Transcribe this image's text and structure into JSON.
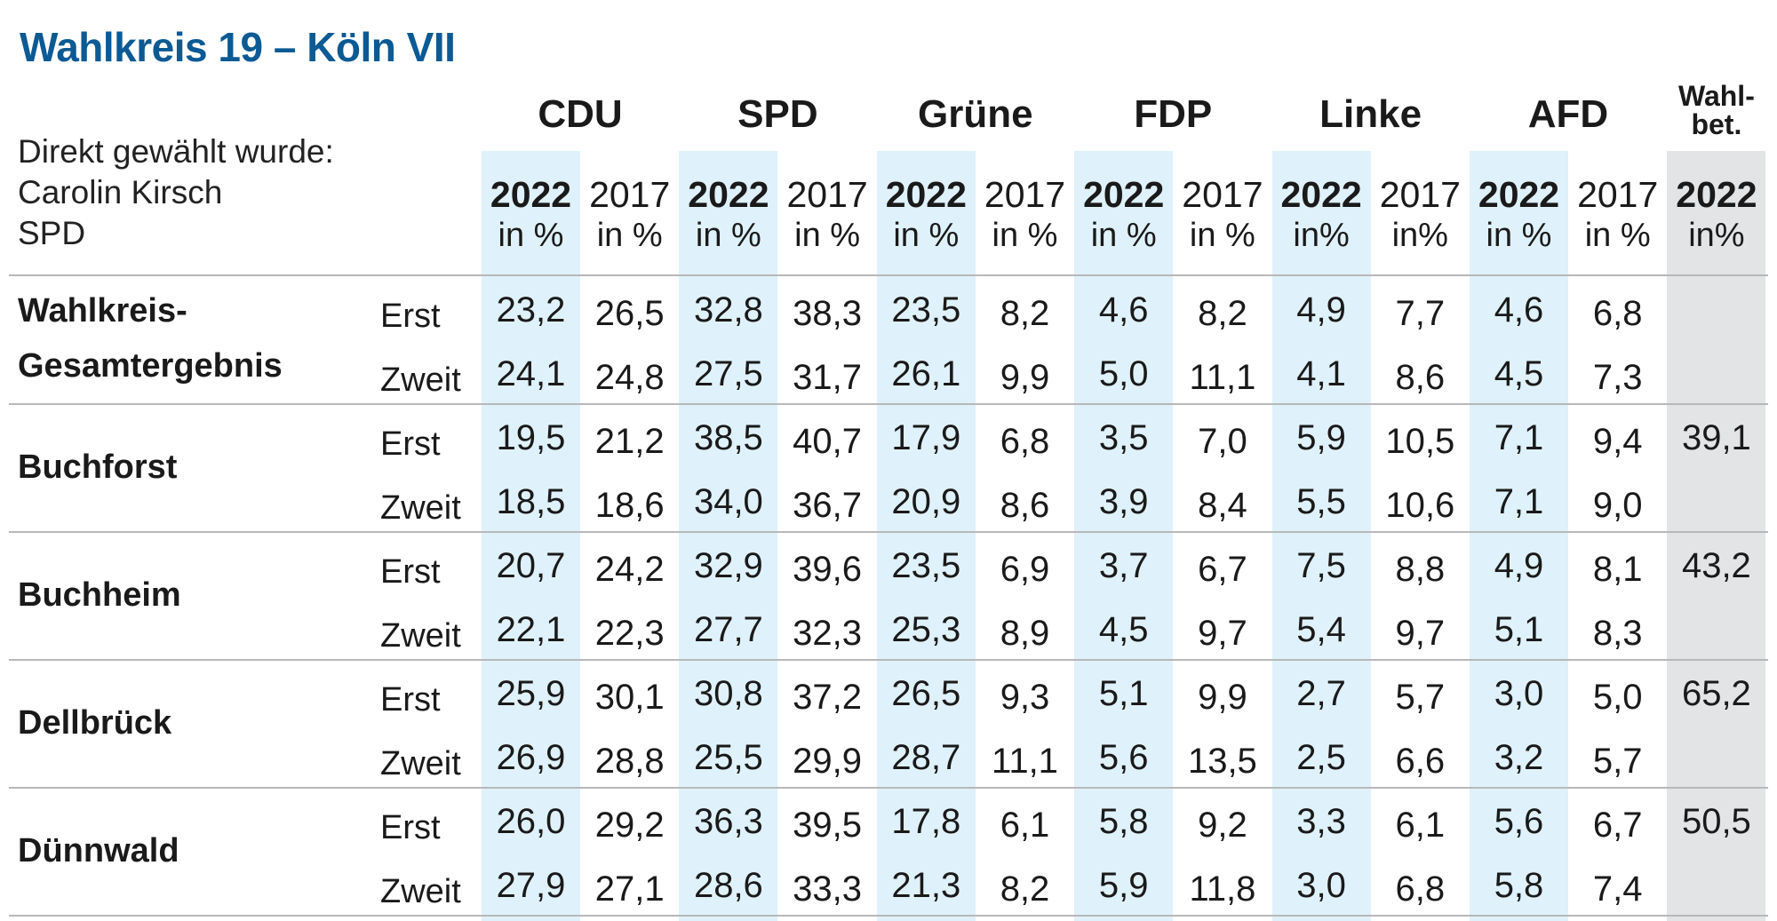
{
  "title": "Wahlkreis 19 – Köln VII",
  "elected": {
    "label": "Direkt gewählt wurde:",
    "name": "Carolin Kirsch",
    "party": "SPD"
  },
  "colors": {
    "title": "#0b5a94",
    "highlight_2022": "#dff1fa",
    "turnout_column": "#e3e4e6"
  },
  "parties": [
    "CDU",
    "SPD",
    "Grüne",
    "FDP",
    "Linke",
    "AFD"
  ],
  "turnout_header": "Wahl-\nbet.",
  "year_headers": [
    {
      "year": "2022",
      "unit": "in %"
    },
    {
      "year": "2017",
      "unit": "in %"
    },
    {
      "year": "2022",
      "unit": "in %"
    },
    {
      "year": "2017",
      "unit": "in %"
    },
    {
      "year": "2022",
      "unit": "in %"
    },
    {
      "year": "2017",
      "unit": "in %"
    },
    {
      "year": "2022",
      "unit": "in %"
    },
    {
      "year": "2017",
      "unit": "in %"
    },
    {
      "year": "2022",
      "unit": "in%"
    },
    {
      "year": "2017",
      "unit": "in%"
    },
    {
      "year": "2022",
      "unit": "in %"
    },
    {
      "year": "2017",
      "unit": "in %"
    },
    {
      "year": "2022",
      "unit": "in%"
    }
  ],
  "vote_labels": [
    "Erst",
    "Zweit"
  ],
  "rows": [
    {
      "name": "Wahlkreis-\nGesamtergebnis",
      "erst": [
        "23,2",
        "26,5",
        "32,8",
        "38,3",
        "23,5",
        "8,2",
        "4,6",
        "8,2",
        "4,9",
        "7,7",
        "4,6",
        "6,8"
      ],
      "zweit": [
        "24,1",
        "24,8",
        "27,5",
        "31,7",
        "26,1",
        "9,9",
        "5,0",
        "11,1",
        "4,1",
        "8,6",
        "4,5",
        "7,3"
      ],
      "turnout": ""
    },
    {
      "name": "Buchforst",
      "erst": [
        "19,5",
        "21,2",
        "38,5",
        "40,7",
        "17,9",
        "6,8",
        "3,5",
        "7,0",
        "5,9",
        "10,5",
        "7,1",
        "9,4"
      ],
      "zweit": [
        "18,5",
        "18,6",
        "34,0",
        "36,7",
        "20,9",
        "8,6",
        "3,9",
        "8,4",
        "5,5",
        "10,6",
        "7,1",
        "9,0"
      ],
      "turnout": "39,1"
    },
    {
      "name": "Buchheim",
      "erst": [
        "20,7",
        "24,2",
        "32,9",
        "39,6",
        "23,5",
        "6,9",
        "3,7",
        "6,7",
        "7,5",
        "8,8",
        "4,9",
        "8,1"
      ],
      "zweit": [
        "22,1",
        "22,3",
        "27,7",
        "32,3",
        "25,3",
        "8,9",
        "4,5",
        "9,7",
        "5,4",
        "9,7",
        "5,1",
        "8,3"
      ],
      "turnout": "43,2"
    },
    {
      "name": "Dellbrück",
      "erst": [
        "25,9",
        "30,1",
        "30,8",
        "37,2",
        "26,5",
        "9,3",
        "5,1",
        "9,9",
        "2,7",
        "5,7",
        "3,0",
        "5,0"
      ],
      "zweit": [
        "26,9",
        "28,8",
        "25,5",
        "29,9",
        "28,7",
        "11,1",
        "5,6",
        "13,5",
        "2,5",
        "6,6",
        "3,2",
        "5,7"
      ],
      "turnout": "65,2"
    },
    {
      "name": "Dünnwald",
      "erst": [
        "26,0",
        "29,2",
        "36,3",
        "39,5",
        "17,8",
        "6,1",
        "5,8",
        "9,2",
        "3,3",
        "6,1",
        "5,6",
        "6,7"
      ],
      "zweit": [
        "27,9",
        "27,1",
        "28,6",
        "33,3",
        "21,3",
        "8,2",
        "5,9",
        "11,8",
        "3,0",
        "6,8",
        "5,8",
        "7,4"
      ],
      "turnout": "50,5"
    }
  ]
}
